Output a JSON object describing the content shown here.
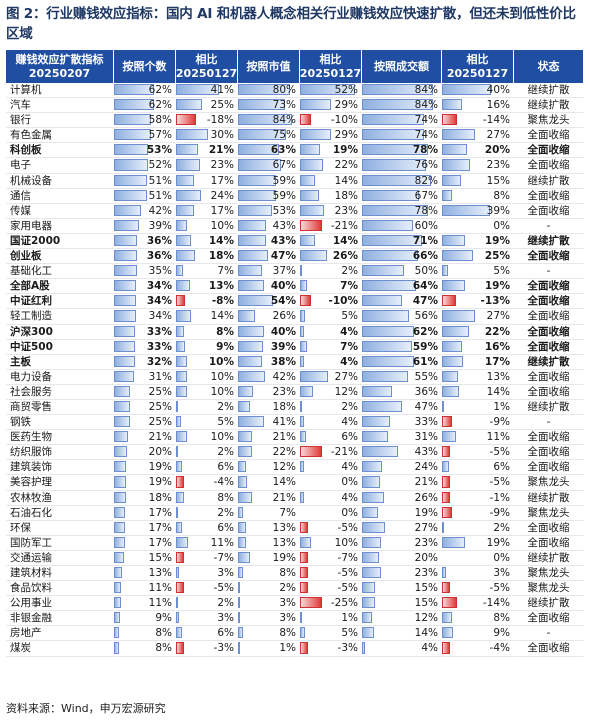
{
  "title": "图 2：行业赚钱效应指标：国内 AI 和机器人概念相关行业赚钱效应快速扩散，但还未到低性价比区域",
  "source": "资料来源：Wind，申万宏源研究",
  "colors": {
    "header": "#1f4ea3",
    "positive_bar": "#8fb0e0",
    "negative_bar": "#e03a3a"
  },
  "chart_data": {
    "type": "table",
    "columns": [
      "赚钱效应扩散指标\n20250207",
      "按照个数",
      "相比\n20250127",
      "按照市值",
      "相比\n20250127",
      "按照成交额",
      "相比\n20250127",
      "状态"
    ],
    "rows": [
      {
        "name": "计算机",
        "count": "62%",
        "count_chg": "41%",
        "mcap": "80%",
        "mcap_chg": "52%",
        "turn": "84%",
        "turn_chg": "40%",
        "status": "继续扩散",
        "bold": false
      },
      {
        "name": "汽车",
        "count": "62%",
        "count_chg": "25%",
        "mcap": "73%",
        "mcap_chg": "29%",
        "turn": "84%",
        "turn_chg": "16%",
        "status": "继续扩散",
        "bold": false
      },
      {
        "name": "银行",
        "count": "58%",
        "count_chg": "-18%",
        "mcap": "84%",
        "mcap_chg": "-10%",
        "turn": "74%",
        "turn_chg": "-14%",
        "status": "聚焦龙头",
        "bold": false
      },
      {
        "name": "有色金属",
        "count": "57%",
        "count_chg": "30%",
        "mcap": "75%",
        "mcap_chg": "29%",
        "turn": "74%",
        "turn_chg": "27%",
        "status": "全面收缩",
        "bold": false
      },
      {
        "name": "科创板",
        "count": "53%",
        "count_chg": "21%",
        "mcap": "63%",
        "mcap_chg": "19%",
        "turn": "78%",
        "turn_chg": "20%",
        "status": "全面收缩",
        "bold": true
      },
      {
        "name": "电子",
        "count": "52%",
        "count_chg": "23%",
        "mcap": "67%",
        "mcap_chg": "22%",
        "turn": "76%",
        "turn_chg": "23%",
        "status": "全面收缩",
        "bold": false
      },
      {
        "name": "机械设备",
        "count": "51%",
        "count_chg": "17%",
        "mcap": "59%",
        "mcap_chg": "14%",
        "turn": "82%",
        "turn_chg": "15%",
        "status": "继续扩散",
        "bold": false
      },
      {
        "name": "通信",
        "count": "51%",
        "count_chg": "24%",
        "mcap": "59%",
        "mcap_chg": "18%",
        "turn": "67%",
        "turn_chg": "8%",
        "status": "全面收缩",
        "bold": false
      },
      {
        "name": "传媒",
        "count": "42%",
        "count_chg": "17%",
        "mcap": "53%",
        "mcap_chg": "23%",
        "turn": "78%",
        "turn_chg": "39%",
        "status": "全面收缩",
        "bold": false
      },
      {
        "name": "家用电器",
        "count": "39%",
        "count_chg": "10%",
        "mcap": "43%",
        "mcap_chg": "-21%",
        "turn": "60%",
        "turn_chg": "0%",
        "status": "-",
        "bold": false
      },
      {
        "name": "国证2000",
        "count": "36%",
        "count_chg": "14%",
        "mcap": "43%",
        "mcap_chg": "14%",
        "turn": "71%",
        "turn_chg": "19%",
        "status": "继续扩散",
        "bold": true
      },
      {
        "name": "创业板",
        "count": "36%",
        "count_chg": "18%",
        "mcap": "47%",
        "mcap_chg": "26%",
        "turn": "66%",
        "turn_chg": "25%",
        "status": "全面收缩",
        "bold": true
      },
      {
        "name": "基础化工",
        "count": "35%",
        "count_chg": "7%",
        "mcap": "37%",
        "mcap_chg": "2%",
        "turn": "50%",
        "turn_chg": "5%",
        "status": "-",
        "bold": false
      },
      {
        "name": "全部A股",
        "count": "34%",
        "count_chg": "13%",
        "mcap": "40%",
        "mcap_chg": "7%",
        "turn": "64%",
        "turn_chg": "19%",
        "status": "全面收缩",
        "bold": true
      },
      {
        "name": "中证红利",
        "count": "34%",
        "count_chg": "-8%",
        "mcap": "54%",
        "mcap_chg": "-10%",
        "turn": "47%",
        "turn_chg": "-13%",
        "status": "全面收缩",
        "bold": true
      },
      {
        "name": "轻工制造",
        "count": "34%",
        "count_chg": "14%",
        "mcap": "26%",
        "mcap_chg": "5%",
        "turn": "56%",
        "turn_chg": "27%",
        "status": "全面收缩",
        "bold": false
      },
      {
        "name": "沪深300",
        "count": "33%",
        "count_chg": "8%",
        "mcap": "40%",
        "mcap_chg": "4%",
        "turn": "62%",
        "turn_chg": "22%",
        "status": "全面收缩",
        "bold": true
      },
      {
        "name": "中证500",
        "count": "33%",
        "count_chg": "9%",
        "mcap": "39%",
        "mcap_chg": "7%",
        "turn": "59%",
        "turn_chg": "16%",
        "status": "全面收缩",
        "bold": true
      },
      {
        "name": "主板",
        "count": "32%",
        "count_chg": "10%",
        "mcap": "38%",
        "mcap_chg": "4%",
        "turn": "61%",
        "turn_chg": "17%",
        "status": "继续扩散",
        "bold": true
      },
      {
        "name": "电力设备",
        "count": "31%",
        "count_chg": "10%",
        "mcap": "42%",
        "mcap_chg": "27%",
        "turn": "55%",
        "turn_chg": "13%",
        "status": "全面收缩",
        "bold": false
      },
      {
        "name": "社会服务",
        "count": "25%",
        "count_chg": "10%",
        "mcap": "23%",
        "mcap_chg": "12%",
        "turn": "36%",
        "turn_chg": "14%",
        "status": "全面收缩",
        "bold": false
      },
      {
        "name": "商贸零售",
        "count": "25%",
        "count_chg": "2%",
        "mcap": "18%",
        "mcap_chg": "2%",
        "turn": "47%",
        "turn_chg": "1%",
        "status": "继续扩散",
        "bold": false
      },
      {
        "name": "钢铁",
        "count": "25%",
        "count_chg": "5%",
        "mcap": "41%",
        "mcap_chg": "4%",
        "turn": "33%",
        "turn_chg": "-9%",
        "status": "-",
        "bold": false
      },
      {
        "name": "医药生物",
        "count": "21%",
        "count_chg": "10%",
        "mcap": "21%",
        "mcap_chg": "6%",
        "turn": "31%",
        "turn_chg": "11%",
        "status": "全面收缩",
        "bold": false
      },
      {
        "name": "纺织服饰",
        "count": "20%",
        "count_chg": "2%",
        "mcap": "22%",
        "mcap_chg": "-21%",
        "turn": "43%",
        "turn_chg": "-5%",
        "status": "全面收缩",
        "bold": false
      },
      {
        "name": "建筑装饰",
        "count": "19%",
        "count_chg": "6%",
        "mcap": "12%",
        "mcap_chg": "4%",
        "turn": "24%",
        "turn_chg": "6%",
        "status": "全面收缩",
        "bold": false
      },
      {
        "name": "美容护理",
        "count": "19%",
        "count_chg": "-4%",
        "mcap": "14%",
        "mcap_chg": "0%",
        "turn": "21%",
        "turn_chg": "-5%",
        "status": "聚焦龙头",
        "bold": false
      },
      {
        "name": "农林牧渔",
        "count": "18%",
        "count_chg": "8%",
        "mcap": "21%",
        "mcap_chg": "4%",
        "turn": "26%",
        "turn_chg": "-1%",
        "status": "继续扩散",
        "bold": false
      },
      {
        "name": "石油石化",
        "count": "17%",
        "count_chg": "2%",
        "mcap": "7%",
        "mcap_chg": "0%",
        "turn": "19%",
        "turn_chg": "-9%",
        "status": "聚焦龙头",
        "bold": false
      },
      {
        "name": "环保",
        "count": "17%",
        "count_chg": "6%",
        "mcap": "13%",
        "mcap_chg": "-5%",
        "turn": "27%",
        "turn_chg": "2%",
        "status": "全面收缩",
        "bold": false
      },
      {
        "name": "国防军工",
        "count": "17%",
        "count_chg": "11%",
        "mcap": "13%",
        "mcap_chg": "10%",
        "turn": "23%",
        "turn_chg": "19%",
        "status": "全面收缩",
        "bold": false
      },
      {
        "name": "交通运输",
        "count": "15%",
        "count_chg": "-7%",
        "mcap": "19%",
        "mcap_chg": "-7%",
        "turn": "20%",
        "turn_chg": "0%",
        "status": "继续扩散",
        "bold": false
      },
      {
        "name": "建筑材料",
        "count": "13%",
        "count_chg": "3%",
        "mcap": "8%",
        "mcap_chg": "-5%",
        "turn": "23%",
        "turn_chg": "3%",
        "status": "聚焦龙头",
        "bold": false
      },
      {
        "name": "食品饮料",
        "count": "11%",
        "count_chg": "-5%",
        "mcap": "2%",
        "mcap_chg": "-5%",
        "turn": "15%",
        "turn_chg": "-5%",
        "status": "聚焦龙头",
        "bold": false
      },
      {
        "name": "公用事业",
        "count": "11%",
        "count_chg": "2%",
        "mcap": "3%",
        "mcap_chg": "-25%",
        "turn": "15%",
        "turn_chg": "-14%",
        "status": "继续扩散",
        "bold": false
      },
      {
        "name": "非银金融",
        "count": "9%",
        "count_chg": "3%",
        "mcap": "3%",
        "mcap_chg": "1%",
        "turn": "12%",
        "turn_chg": "8%",
        "status": "全面收缩",
        "bold": false
      },
      {
        "name": "房地产",
        "count": "8%",
        "count_chg": "6%",
        "mcap": "8%",
        "mcap_chg": "5%",
        "turn": "14%",
        "turn_chg": "9%",
        "status": "-",
        "bold": false
      },
      {
        "name": "煤炭",
        "count": "8%",
        "count_chg": "-3%",
        "mcap": "1%",
        "mcap_chg": "-3%",
        "turn": "4%",
        "turn_chg": "-4%",
        "status": "全面收缩",
        "bold": false
      }
    ]
  }
}
